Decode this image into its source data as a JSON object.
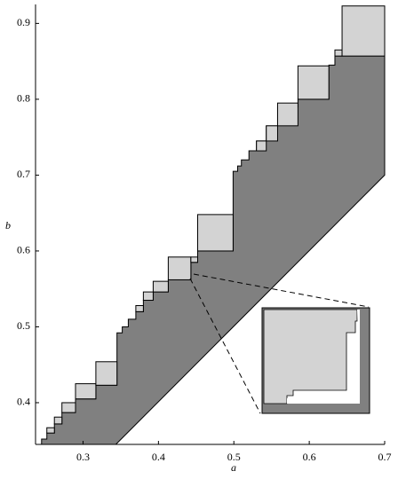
{
  "chart_data": {
    "type": "region",
    "xlabel": "a",
    "ylabel": "b",
    "xlim": [
      0.237,
      0.7
    ],
    "ylim": [
      0.345,
      0.925
    ],
    "xticks": [
      0.3,
      0.4,
      0.5,
      0.6,
      0.7
    ],
    "yticks": [
      0.4,
      0.5,
      0.6,
      0.7,
      0.8,
      0.9
    ],
    "region_color": "#808080",
    "square_color": "#d3d3d3",
    "region": [
      [
        0.24,
        0.345
      ],
      [
        0.245,
        0.345
      ],
      [
        0.245,
        0.352
      ],
      [
        0.252,
        0.352
      ],
      [
        0.252,
        0.36
      ],
      [
        0.262,
        0.36
      ],
      [
        0.262,
        0.372
      ],
      [
        0.272,
        0.372
      ],
      [
        0.272,
        0.387
      ],
      [
        0.29,
        0.387
      ],
      [
        0.29,
        0.405
      ],
      [
        0.317,
        0.405
      ],
      [
        0.317,
        0.423
      ],
      [
        0.345,
        0.423
      ],
      [
        0.345,
        0.492
      ],
      [
        0.352,
        0.492
      ],
      [
        0.352,
        0.5
      ],
      [
        0.36,
        0.5
      ],
      [
        0.36,
        0.51
      ],
      [
        0.37,
        0.51
      ],
      [
        0.37,
        0.52
      ],
      [
        0.38,
        0.52
      ],
      [
        0.38,
        0.535
      ],
      [
        0.393,
        0.535
      ],
      [
        0.393,
        0.546
      ],
      [
        0.413,
        0.546
      ],
      [
        0.413,
        0.562
      ],
      [
        0.443,
        0.562
      ],
      [
        0.443,
        0.585
      ],
      [
        0.452,
        0.585
      ],
      [
        0.452,
        0.6
      ],
      [
        0.499,
        0.6
      ],
      [
        0.499,
        0.705
      ],
      [
        0.505,
        0.705
      ],
      [
        0.505,
        0.712
      ],
      [
        0.51,
        0.712
      ],
      [
        0.51,
        0.72
      ],
      [
        0.52,
        0.72
      ],
      [
        0.52,
        0.732
      ],
      [
        0.53,
        0.732
      ],
      [
        0.53,
        0.745
      ],
      [
        0.543,
        0.745
      ],
      [
        0.543,
        0.765
      ],
      [
        0.558,
        0.765
      ],
      [
        0.558,
        0.79
      ],
      [
        0.585,
        0.79
      ],
      [
        0.585,
        0.8
      ],
      [
        0.626,
        0.8
      ],
      [
        0.626,
        0.845
      ],
      [
        0.634,
        0.845
      ],
      [
        0.634,
        0.857
      ],
      [
        0.7,
        0.857
      ],
      [
        0.7,
        0.7
      ],
      [
        0.3435,
        0.345
      ]
    ],
    "squares": [
      [
        0.252,
        0.36,
        0.262,
        0.367
      ],
      [
        0.262,
        0.372,
        0.272,
        0.381
      ],
      [
        0.272,
        0.387,
        0.29,
        0.4
      ],
      [
        0.29,
        0.405,
        0.317,
        0.425
      ],
      [
        0.317,
        0.423,
        0.345,
        0.454
      ],
      [
        0.37,
        0.52,
        0.38,
        0.528
      ],
      [
        0.38,
        0.535,
        0.393,
        0.546
      ],
      [
        0.393,
        0.546,
        0.413,
        0.56
      ],
      [
        0.413,
        0.562,
        0.443,
        0.592
      ],
      [
        0.443,
        0.585,
        0.452,
        0.592
      ],
      [
        0.452,
        0.6,
        0.499,
        0.648
      ],
      [
        0.53,
        0.732,
        0.543,
        0.745
      ],
      [
        0.543,
        0.745,
        0.558,
        0.765
      ],
      [
        0.558,
        0.765,
        0.585,
        0.795
      ],
      [
        0.585,
        0.8,
        0.626,
        0.844
      ],
      [
        0.634,
        0.857,
        0.6435,
        0.865
      ],
      [
        0.6435,
        0.857,
        0.7,
        0.923
      ]
    ]
  }
}
